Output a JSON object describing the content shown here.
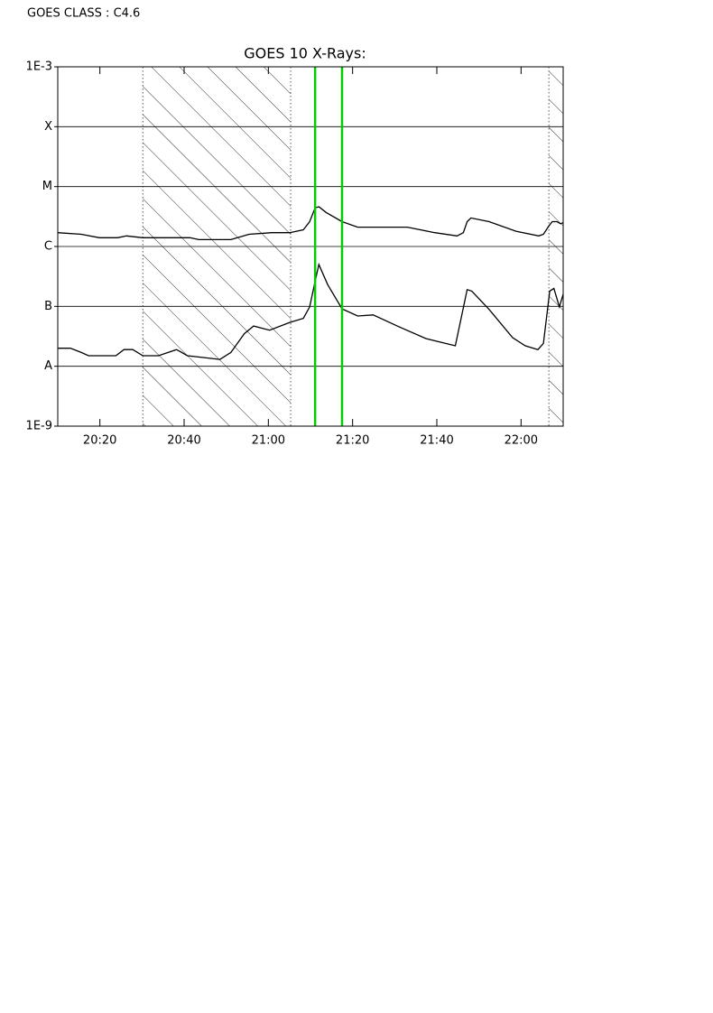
{
  "header": {
    "text": "GOES CLASS : C4.6"
  },
  "chart_data": {
    "type": "line",
    "title": "GOES 10 X-Rays:",
    "log_y": true,
    "grid": true,
    "xlim": [
      1210,
      1330
    ],
    "xticks": [
      {
        "value": 1220,
        "label": "20:20"
      },
      {
        "value": 1240,
        "label": "20:40"
      },
      {
        "value": 1260,
        "label": "21:00"
      },
      {
        "value": 1280,
        "label": "21:20"
      },
      {
        "value": 1300,
        "label": "21:40"
      },
      {
        "value": 1320,
        "label": "22:00"
      }
    ],
    "ylim": [
      1e-09,
      0.001
    ],
    "yticks": [
      {
        "value": 1e-09,
        "label": "1E-9"
      },
      {
        "value": 1e-08,
        "label": "A"
      },
      {
        "value": 1e-07,
        "label": "B"
      },
      {
        "value": 1e-06,
        "label": "C"
      },
      {
        "value": 1e-05,
        "label": "M"
      },
      {
        "value": 0.0001,
        "label": "X"
      },
      {
        "value": 0.001,
        "label": "1E-3"
      }
    ],
    "shaded_intervals": [
      [
        1230.2,
        1265.3
      ],
      [
        1326.6,
        1330
      ]
    ],
    "markers": {
      "color": "#00cc00",
      "values": [
        1271.1,
        1277.5
      ]
    },
    "series": [
      {
        "color": "#000000",
        "x": [
          1210,
          1215.6,
          1219.9,
          1224.2,
          1226.3,
          1230.2,
          1241.4,
          1243.5,
          1251.1,
          1255.4,
          1260.8,
          1265.1,
          1268.3,
          1269.8,
          1271.1,
          1272,
          1273.7,
          1277.5,
          1281.2,
          1286.6,
          1293,
          1299.5,
          1304.8,
          1306.3,
          1307.2,
          1308.1,
          1312.4,
          1318.8,
          1324.2,
          1325.3,
          1326.6,
          1327.4,
          1328.5,
          1329.4,
          1330
        ],
        "values": [
          1.7e-06,
          1.6e-06,
          1.4e-06,
          1.4e-06,
          1.5e-06,
          1.4e-06,
          1.4e-06,
          1.3e-06,
          1.3e-06,
          1.6e-06,
          1.7e-06,
          1.7e-06,
          1.9e-06,
          2.6e-06,
          4.4e-06,
          4.6e-06,
          3.7e-06,
          2.6e-06,
          2.1e-06,
          2.1e-06,
          2.1e-06,
          1.7e-06,
          1.5e-06,
          1.7e-06,
          2.6e-06,
          3e-06,
          2.6e-06,
          1.8e-06,
          1.5e-06,
          1.6e-06,
          2.2e-06,
          2.6e-06,
          2.6e-06,
          2.4e-06,
          2.5e-06
        ]
      },
      {
        "color": "#000000",
        "x": [
          1210,
          1213,
          1215.6,
          1217.3,
          1223.8,
          1225.7,
          1227.8,
          1230.2,
          1233.9,
          1238.2,
          1240.8,
          1244.6,
          1248.5,
          1251.1,
          1254.3,
          1256.5,
          1260.3,
          1265.1,
          1268.3,
          1269.8,
          1271.1,
          1272,
          1274.1,
          1277.5,
          1281.2,
          1284.9,
          1290.9,
          1297.4,
          1304.4,
          1307.2,
          1308.3,
          1312.4,
          1318,
          1321,
          1324,
          1325.3,
          1326.8,
          1327.8,
          1329.1,
          1330
        ],
        "values": [
          2e-08,
          2e-08,
          1.7e-08,
          1.5e-08,
          1.5e-08,
          1.9e-08,
          1.9e-08,
          1.5e-08,
          1.5e-08,
          1.9e-08,
          1.5e-08,
          1.4e-08,
          1.3e-08,
          1.7e-08,
          3.5e-08,
          4.7e-08,
          4e-08,
          5.4e-08,
          6.3e-08,
          9.8e-08,
          2.6e-07,
          5e-07,
          2.3e-07,
          9.1e-08,
          6.9e-08,
          7.2e-08,
          4.6e-08,
          2.9e-08,
          2.2e-08,
          1.9e-07,
          1.8e-07,
          8.9e-08,
          3e-08,
          2.2e-08,
          1.9e-08,
          2.4e-08,
          1.8e-07,
          2e-07,
          9.8e-08,
          1.6e-07
        ]
      }
    ]
  }
}
